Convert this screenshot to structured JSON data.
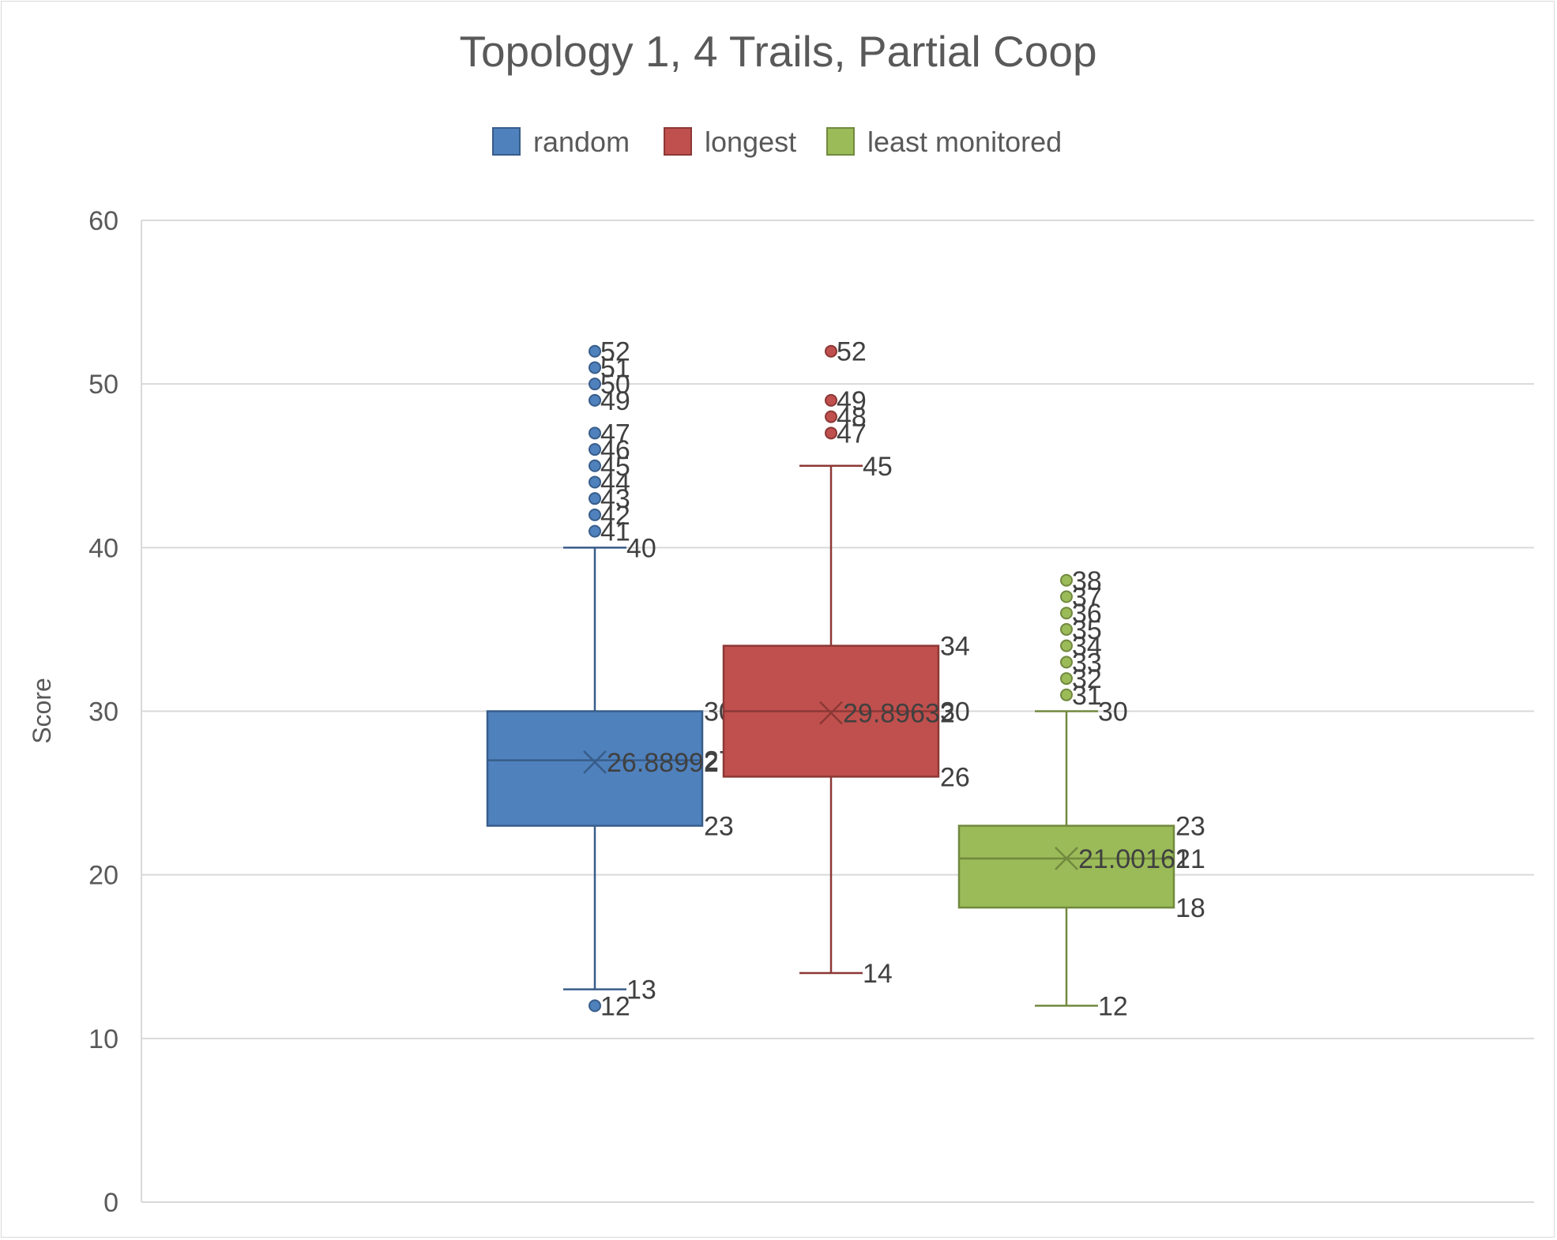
{
  "chart_data": {
    "type": "box",
    "title": "Topology 1, 4 Trails, Partial Coop",
    "ylabel": "Score",
    "xlabel": "",
    "ylim": [
      0,
      60
    ],
    "yticks": [
      0,
      10,
      20,
      30,
      40,
      50,
      60
    ],
    "grid": true,
    "legend_position": "top",
    "series": [
      {
        "name": "random",
        "color": "#4f81bd",
        "stroke": "#385d8a",
        "min_whisker": 13,
        "q1": 23,
        "median": 27,
        "q3": 30,
        "max_whisker": 40,
        "mean": 26.88992,
        "mean_label": "26.88992",
        "outliers": [
          12,
          41,
          42,
          43,
          44,
          45,
          46,
          47,
          49,
          50,
          51,
          52
        ]
      },
      {
        "name": "longest",
        "color": "#c0504d",
        "stroke": "#8c3836",
        "min_whisker": 14,
        "q1": 26,
        "median": 30,
        "q3": 34,
        "max_whisker": 45,
        "mean": 29.89632,
        "mean_label": "29.89632",
        "outliers": [
          47,
          48,
          49,
          52
        ]
      },
      {
        "name": "least monitored",
        "color": "#9bbb59",
        "stroke": "#71893f",
        "min_whisker": 12,
        "q1": 18,
        "median": 21,
        "q3": 23,
        "max_whisker": 30,
        "mean": 21.00161,
        "mean_label": "21.00161",
        "outliers": [
          31,
          32,
          33,
          34,
          35,
          36,
          37,
          38
        ]
      }
    ]
  }
}
